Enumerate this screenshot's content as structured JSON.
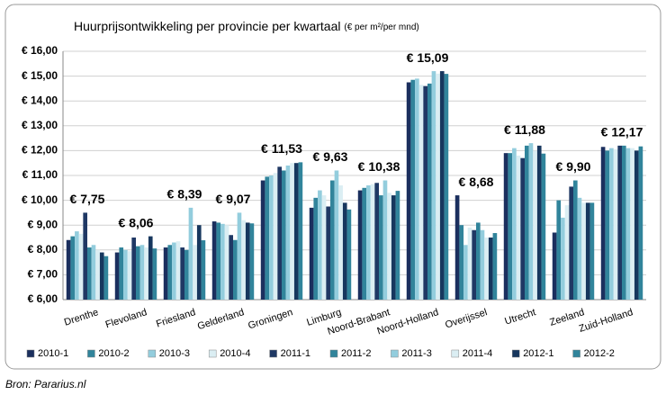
{
  "chart_data": {
    "type": "bar",
    "title": "Huurprijsontwikkeling per provincie per kwartaal",
    "subtitle": "(€ per m²/per mnd)",
    "source": "Bron: Pararius.nl",
    "categories": [
      "Drenthe",
      "Flevoland",
      "Friesland",
      "Gelderland",
      "Groningen",
      "Limburg",
      "Noord-Brabant",
      "Noord-Holland",
      "Overijssel",
      "Utrecht",
      "Zeeland",
      "Zuid-Holland"
    ],
    "series": [
      {
        "name": "2010-1",
        "color": "#1b2f5e",
        "values": [
          8.4,
          7.9,
          8.1,
          9.15,
          10.8,
          9.7,
          10.4,
          14.75,
          10.2,
          11.9,
          8.7,
          12.15
        ]
      },
      {
        "name": "2010-2",
        "color": "#31849b",
        "values": [
          8.55,
          8.1,
          8.2,
          9.1,
          10.95,
          10.1,
          10.5,
          14.85,
          9.0,
          11.9,
          10.0,
          12.0
        ]
      },
      {
        "name": "2010-3",
        "color": "#93cddd",
        "values": [
          8.75,
          8.0,
          8.3,
          9.05,
          11.0,
          10.4,
          10.6,
          14.9,
          8.2,
          12.1,
          9.3,
          12.1
        ]
      },
      {
        "name": "2010-4",
        "color": "#dbeef3",
        "values": [
          8.65,
          7.95,
          8.35,
          9.0,
          11.1,
          10.2,
          10.65,
          14.65,
          8.9,
          11.8,
          9.8,
          12.05
        ]
      },
      {
        "name": "2011-1",
        "color": "#1f3864",
        "values": [
          9.5,
          8.5,
          8.1,
          8.6,
          11.35,
          9.75,
          10.7,
          14.6,
          8.8,
          11.7,
          10.55,
          12.2
        ]
      },
      {
        "name": "2011-2",
        "color": "#31849b",
        "values": [
          8.1,
          8.15,
          8.0,
          8.4,
          11.2,
          10.8,
          10.2,
          14.7,
          9.1,
          12.2,
          10.8,
          12.2
        ]
      },
      {
        "name": "2011-3",
        "color": "#93cddd",
        "values": [
          8.2,
          8.2,
          9.7,
          9.5,
          11.4,
          11.2,
          10.8,
          15.2,
          8.8,
          12.3,
          10.1,
          12.1
        ]
      },
      {
        "name": "2011-4",
        "color": "#dbeef3",
        "values": [
          8.0,
          8.1,
          8.2,
          9.2,
          11.5,
          10.6,
          10.3,
          15.1,
          8.5,
          12.0,
          9.9,
          12.1
        ]
      },
      {
        "name": "2012-1",
        "color": "#17375e",
        "values": [
          7.9,
          8.55,
          9.0,
          9.1,
          11.5,
          9.9,
          10.2,
          15.2,
          8.5,
          12.2,
          9.9,
          12.0
        ]
      },
      {
        "name": "2012-2",
        "color": "#31849b",
        "values": [
          7.75,
          8.06,
          8.39,
          9.07,
          11.53,
          9.63,
          10.38,
          15.09,
          8.68,
          11.88,
          9.9,
          12.17
        ]
      }
    ],
    "annotations": [
      {
        "category": 0,
        "text": "€ 7,75",
        "color": "#e8282b"
      },
      {
        "category": 1,
        "text": "€ 8,06",
        "color": "#e8282b"
      },
      {
        "category": 2,
        "text": "€ 8,39",
        "color": "#e8282b"
      },
      {
        "category": 3,
        "text": "€ 9,07",
        "color": "#e8282b"
      },
      {
        "category": 4,
        "text": "€ 11,53",
        "color": "#e8282b"
      },
      {
        "category": 5,
        "text": "€ 9,63",
        "color": "#e8282b"
      },
      {
        "category": 6,
        "text": "€ 10,38",
        "color": "#2db34a"
      },
      {
        "category": 7,
        "text": "€ 15,09",
        "color": "#e8282b"
      },
      {
        "category": 8,
        "text": "€ 8,68",
        "color": "#2db34a"
      },
      {
        "category": 9,
        "text": "€ 11,88",
        "color": "#e8282b"
      },
      {
        "category": 10,
        "text": "€ 9,90",
        "color": "#e8282b"
      },
      {
        "category": 11,
        "text": "€ 12,17",
        "color": "#2db34a"
      }
    ],
    "ylim": [
      6,
      16
    ],
    "yticks": [
      {
        "value": 6,
        "label": "€ 6,00"
      },
      {
        "value": 7,
        "label": "€ 7,00"
      },
      {
        "value": 8,
        "label": "€ 8,00"
      },
      {
        "value": 9,
        "label": "€ 9,00"
      },
      {
        "value": 10,
        "label": "€ 10,00"
      },
      {
        "value": 11,
        "label": "€ 11,00"
      },
      {
        "value": 12,
        "label": "€ 12,00"
      },
      {
        "value": 13,
        "label": "€ 13,00"
      },
      {
        "value": 14,
        "label": "€ 14,00"
      },
      {
        "value": 15,
        "label": "€ 15,00"
      },
      {
        "value": 16,
        "label": "€ 16,00"
      }
    ],
    "grid": true,
    "legend": "bottom"
  }
}
